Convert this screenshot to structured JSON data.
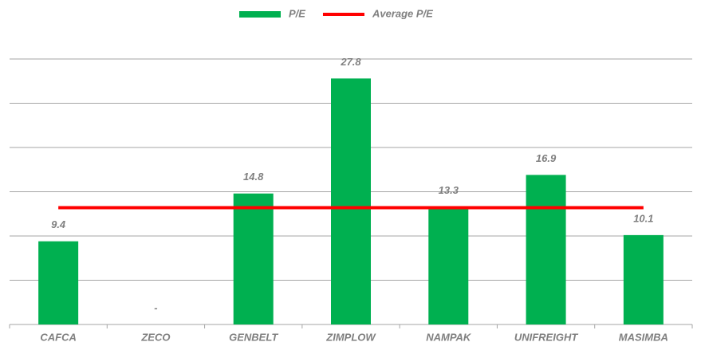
{
  "chart_data": {
    "type": "bar",
    "categories": [
      "CAFCA",
      "ZECO",
      "GENBELT",
      "ZIMPLOW",
      "NAMPAK",
      "UNIFREIGHT",
      "MASIMBA"
    ],
    "series": [
      {
        "name": "P/E",
        "type": "bar",
        "color": "#00b050",
        "values": [
          9.4,
          null,
          14.8,
          27.8,
          13.3,
          16.9,
          10.1
        ],
        "value_labels": [
          "9.4",
          "-",
          "14.8",
          "27.8",
          "13.3",
          "16.9",
          "10.1"
        ]
      },
      {
        "name": "Average P/E",
        "type": "line",
        "color": "#ff0000",
        "values": [
          13.2,
          13.2,
          13.2,
          13.2,
          13.2,
          13.2,
          13.2
        ]
      }
    ],
    "ylim": [
      0,
      30
    ],
    "yticks": [
      0,
      5,
      10,
      15,
      20,
      25,
      30
    ],
    "grid": true,
    "legend": "top"
  }
}
